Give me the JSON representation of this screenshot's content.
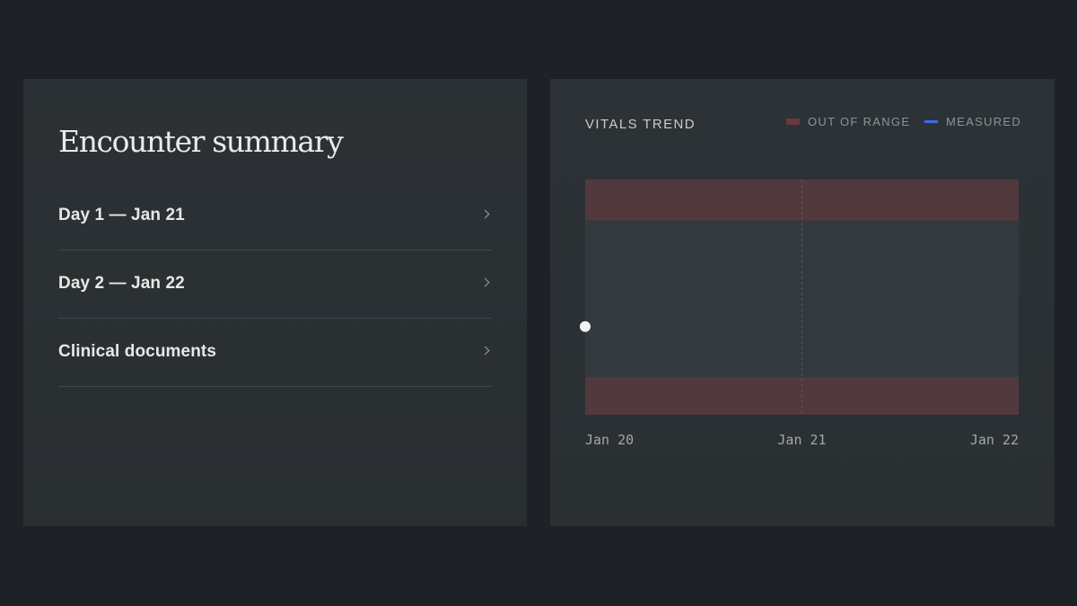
{
  "summary": {
    "title": "Encounter summary",
    "items": [
      {
        "label": "Day 1 — Jan 21"
      },
      {
        "label": "Day 2 — Jan 22"
      },
      {
        "label": "Clinical documents"
      }
    ]
  },
  "vitals": {
    "title": "VITALS TREND",
    "legend": {
      "out_of_range": "OUT OF RANGE",
      "measured": "MEASURED"
    }
  },
  "colors": {
    "out_of_range": "#6a3a40",
    "measured": "#3a6ee0",
    "point": "#f2f2f2"
  },
  "chart_data": {
    "type": "scatter",
    "title": "VITALS TREND",
    "x_ticks": [
      "Jan 20",
      "Jan 21",
      "Jan 22"
    ],
    "xlim": [
      "Jan 20",
      "Jan 22"
    ],
    "ylim": [
      0,
      1
    ],
    "y_tick_labels": [],
    "out_of_range_bands": [
      [
        0,
        0.16
      ],
      [
        0.825,
        1
      ]
    ],
    "reference_lines": [
      "Jan 21"
    ],
    "series": [
      {
        "name": "MEASURED",
        "points": [
          {
            "x": "Jan 20",
            "y": 0.375
          }
        ]
      }
    ],
    "grid": false,
    "legend_position": "top-right"
  }
}
